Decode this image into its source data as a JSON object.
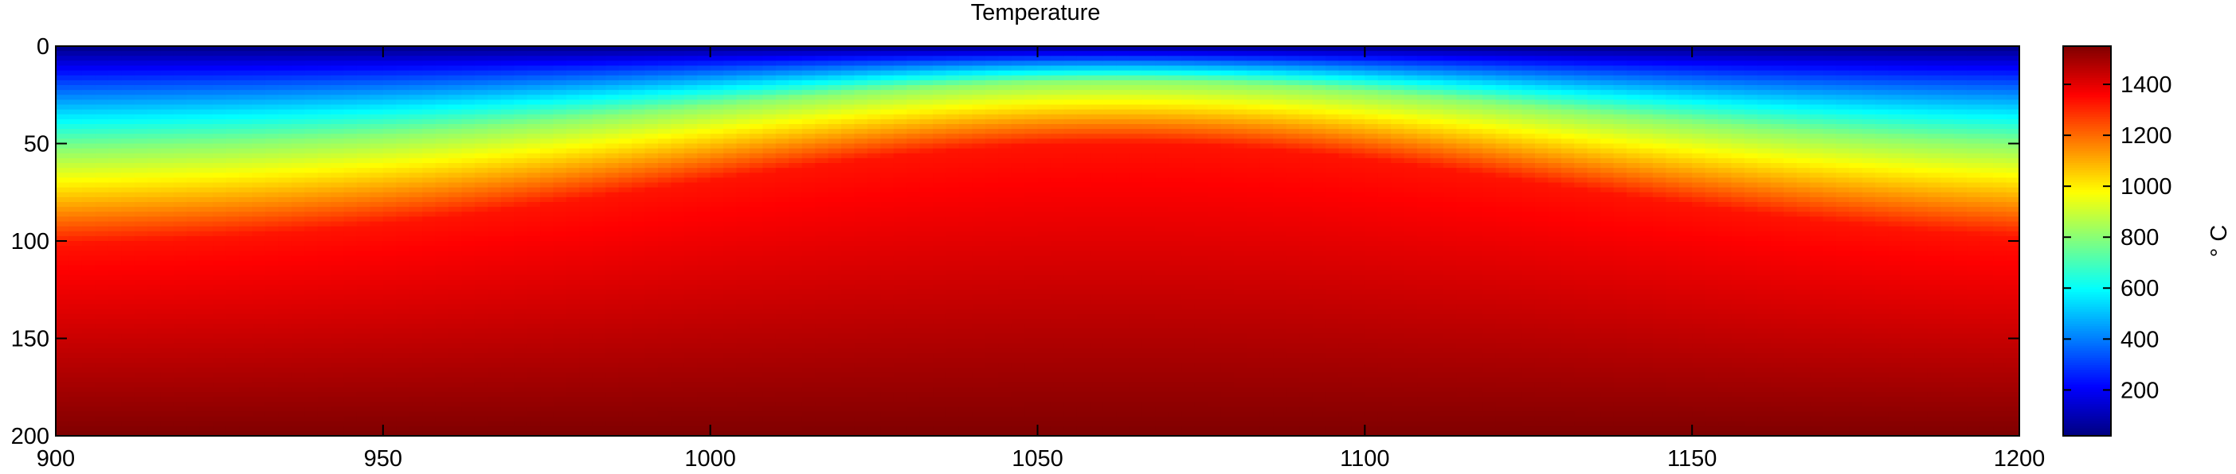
{
  "chart_data": {
    "type": "heatmap",
    "title": "Temperature",
    "xlabel": "",
    "ylabel": "",
    "x_range": [
      900,
      1200
    ],
    "y_range": [
      0,
      200
    ],
    "y_reversed": true,
    "x_ticks": [
      900,
      950,
      1000,
      1050,
      1100,
      1150,
      1200
    ],
    "y_ticks": [
      0,
      50,
      100,
      150,
      200
    ],
    "colormap": "jet",
    "colorbar": {
      "label": "° C",
      "range": [
        20,
        1550
      ],
      "ticks": [
        200,
        400,
        600,
        800,
        1000,
        1200,
        1400
      ]
    },
    "field_model": {
      "description_of_values": "temperature (°C) as function of x and depth",
      "surface_temperature": 20,
      "lithosphere_base_temperature": 1330,
      "deep_temperature": 1550,
      "ridge_axis_x": 1062,
      "isotherm_1330_depth_at_ridge": 50,
      "isotherm_1330_depth_far_field": 105,
      "isotherm_800_depth_at_ridge": 18,
      "isotherm_800_depth_far_field": 55,
      "bottom_depth": 200
    }
  }
}
